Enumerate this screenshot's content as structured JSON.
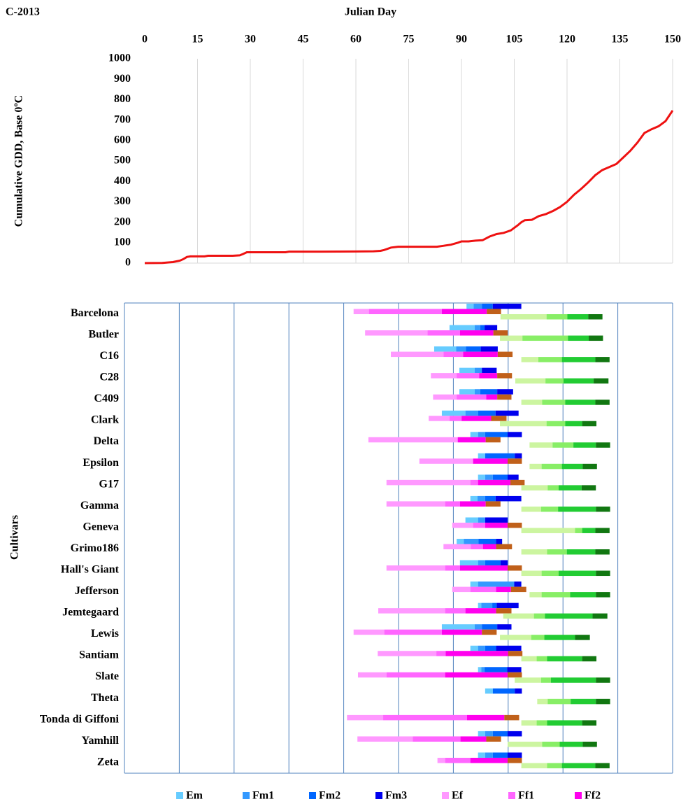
{
  "chart_data": [
    {
      "type": "line",
      "label": "C-2013",
      "xlabel": "Julian Day",
      "ylabel": "Cumulative GDD, Base 0ºC",
      "color": "#ee1111",
      "grid": true,
      "xlim": [
        0,
        150
      ],
      "xticks": [
        0,
        15,
        30,
        45,
        60,
        75,
        90,
        105,
        120,
        135,
        150
      ],
      "ylim": [
        0,
        1000
      ],
      "yticks": [
        0,
        100,
        200,
        300,
        400,
        500,
        600,
        700,
        800,
        900,
        1000
      ],
      "x": [
        0,
        5,
        8,
        10,
        11,
        12,
        13,
        15,
        17,
        18,
        20,
        25,
        27,
        28,
        29,
        30,
        40,
        41,
        50,
        60,
        65,
        67,
        68,
        70,
        72,
        80,
        83,
        85,
        87,
        89,
        90,
        92,
        94,
        96,
        98,
        100,
        102,
        104,
        106,
        107,
        108,
        110,
        112,
        114,
        116,
        118,
        120,
        122,
        124,
        126,
        128,
        130,
        132,
        134,
        136,
        138,
        140,
        142,
        144,
        146,
        148,
        150
      ],
      "values": [
        0,
        1,
        5,
        12,
        20,
        30,
        33,
        33,
        33,
        36,
        36,
        36,
        38,
        45,
        53,
        53,
        53,
        56,
        56,
        57,
        58,
        60,
        64,
        76,
        80,
        80,
        80,
        85,
        90,
        100,
        106,
        106,
        110,
        112,
        130,
        142,
        148,
        160,
        185,
        200,
        210,
        212,
        230,
        240,
        255,
        274,
        300,
        335,
        363,
        395,
        430,
        455,
        470,
        485,
        517,
        550,
        590,
        637,
        655,
        670,
        695,
        747
      ]
    },
    {
      "type": "gantt",
      "ylabel": "Cultivars",
      "xlim": [
        0,
        100
      ],
      "xticks": [
        0,
        10,
        20,
        30,
        40,
        50,
        60,
        70,
        80,
        90,
        100
      ],
      "grid": true,
      "grid_color": "#4f81bd",
      "categories": [
        "Barcelona",
        "Butler",
        "C16",
        "C28",
        "C409",
        "Clark",
        "Delta",
        "Epsilon",
        "G17",
        "Gamma",
        "Geneva",
        "Grimo186",
        "Hall's Giant",
        "Jefferson",
        "Jemtegaard",
        "Lewis",
        "Santiam",
        "Slate",
        "Theta",
        "Tonda di Giffoni",
        "Yamhill",
        "Zeta"
      ],
      "starts": {
        "male": [
          62.4,
          59.3,
          56.5,
          61.1,
          61.1,
          57.9,
          63.1,
          64.5,
          64.5,
          63.1,
          62.2,
          60.6,
          61.2,
          63.1,
          64.5,
          57.9,
          63.1,
          64.5,
          65.8,
          null,
          64.5,
          64.5
        ],
        "female": [
          41.8,
          43.9,
          48.6,
          55.9,
          56.3,
          55.5,
          44.5,
          53.8,
          47.8,
          47.8,
          59.8,
          58.2,
          47.8,
          59.8,
          46.3,
          41.8,
          46.2,
          42.6,
          null,
          40.6,
          42.5,
          57.1
        ],
        "leaf": [
          68.6,
          68.5,
          72.4,
          71.3,
          72.4,
          68.5,
          73.9,
          73.9,
          72.4,
          72.4,
          72.4,
          72.4,
          72.4,
          73.9,
          69.1,
          68.5,
          72.4,
          71.2,
          75.3,
          72.4,
          69.9,
          72.4
        ]
      },
      "series": [
        {
          "name": "Em",
          "color": "#66ccff",
          "row": "male",
          "values": [
            1.3,
            4.6,
            4.0,
            2.8,
            2.8,
            4.3,
            1.4,
            1.3,
            1.3,
            1.3,
            2.3,
            1.3,
            3.3,
            1.4,
            0.6,
            6.0,
            1.4,
            0.6,
            1.4,
            null,
            1.3,
            1.3
          ]
        },
        {
          "name": "Fm1",
          "color": "#3399ff",
          "row": "male",
          "values": [
            1.5,
            1.0,
            1.8,
            1.3,
            1.0,
            2.3,
            1.3,
            0,
            1.4,
            1.4,
            1.3,
            2.7,
            1.3,
            6.6,
            2.0,
            1.3,
            1.3,
            0.6,
            0,
            null,
            1.4,
            1.4
          ]
        },
        {
          "name": "Fm2",
          "color": "#0066ff",
          "row": "male",
          "values": [
            2.0,
            0.8,
            2.7,
            0,
            3.1,
            3.2,
            4.1,
            5.4,
            2.7,
            1.9,
            0,
            3.2,
            2.8,
            0,
            0.8,
            2.8,
            2.0,
            4.1,
            4.0,
            null,
            2.7,
            2.7
          ]
        },
        {
          "name": "Fm3",
          "color": "#0000ee",
          "row": "male",
          "values": [
            5.2,
            2.3,
            3.1,
            2.7,
            2.9,
            4.2,
            2.6,
            1.3,
            2.0,
            4.7,
            4.1,
            1.1,
            1.3,
            1.3,
            4.0,
            2.6,
            4.6,
            2.6,
            1.3,
            null,
            2.6,
            2.6
          ]
        },
        {
          "name": "Ef",
          "color": "#ff99ff",
          "row": "female",
          "values": [
            2.8,
            11.4,
            9.6,
            4.7,
            4.3,
            3.8,
            16.3,
            9.8,
            15.3,
            10.7,
            3.8,
            5.0,
            10.7,
            3.3,
            12.2,
            5.6,
            10.7,
            5.2,
            null,
            6.6,
            10.1,
            1.4
          ]
        },
        {
          "name": "Ff1",
          "color": "#ff66ff",
          "row": "female",
          "values": [
            13.3,
            5.9,
            3.6,
            4.1,
            5.4,
            2.2,
            0,
            0,
            1.4,
            2.7,
            2.2,
            2.2,
            2.7,
            4.7,
            3.7,
            10.5,
            1.7,
            10.7,
            null,
            15.3,
            8.7,
            4.6
          ]
        },
        {
          "name": "Ff2",
          "color": "#ff00ee",
          "row": "female",
          "values": [
            8.2,
            6.1,
            6.3,
            3.3,
            2.0,
            5.4,
            5.1,
            6.3,
            5.9,
            4.7,
            4.1,
            2.4,
            8.7,
            2.7,
            5.6,
            7.3,
            11.4,
            11.4,
            null,
            6.8,
            4.7,
            6.8
          ]
        },
        {
          "color": "#c0601a",
          "row": "female",
          "values": [
            2.6,
            2.6,
            2.7,
            2.7,
            2.6,
            2.8,
            2.7,
            2.6,
            2.6,
            2.7,
            2.6,
            2.9,
            2.6,
            2.8,
            2.8,
            2.7,
            2.6,
            2.6,
            null,
            2.7,
            2.7,
            2.6
          ]
        },
        {
          "color": "#ccf5a0",
          "row": "leaf",
          "values": [
            8.4,
            4.1,
            3.1,
            5.5,
            3.8,
            8.5,
            4.2,
            2.2,
            4.8,
            3.6,
            9.8,
            4.7,
            3.7,
            2.2,
            5.6,
            5.7,
            2.8,
            4.8,
            1.9,
            2.8,
            6.3,
            4.7
          ]
        },
        {
          "color": "#88ee66",
          "row": "leaf",
          "values": [
            3.8,
            8.3,
            4.3,
            3.3,
            4.2,
            3.4,
            3.8,
            3.7,
            2.0,
            3.1,
            1.3,
            3.6,
            3.1,
            5.2,
            2.0,
            2.4,
            1.9,
            1.8,
            4.2,
            1.9,
            3.2,
            2.7
          ]
        },
        {
          "color": "#22cc33",
          "row": "leaf",
          "values": [
            3.8,
            3.8,
            6.1,
            5.5,
            5.5,
            3.1,
            4.1,
            3.8,
            4.2,
            6.9,
            2.4,
            5.2,
            6.8,
            4.7,
            8.7,
            5.6,
            6.4,
            8.2,
            4.6,
            6.4,
            4.2,
            6.1
          ]
        },
        {
          "color": "#117711",
          "row": "leaf",
          "values": [
            2.6,
            2.6,
            2.6,
            2.7,
            2.6,
            2.6,
            2.6,
            2.6,
            2.6,
            2.6,
            2.6,
            2.6,
            2.6,
            2.6,
            2.7,
            2.7,
            2.6,
            2.6,
            2.6,
            2.6,
            2.6,
            2.6
          ]
        }
      ]
    }
  ]
}
